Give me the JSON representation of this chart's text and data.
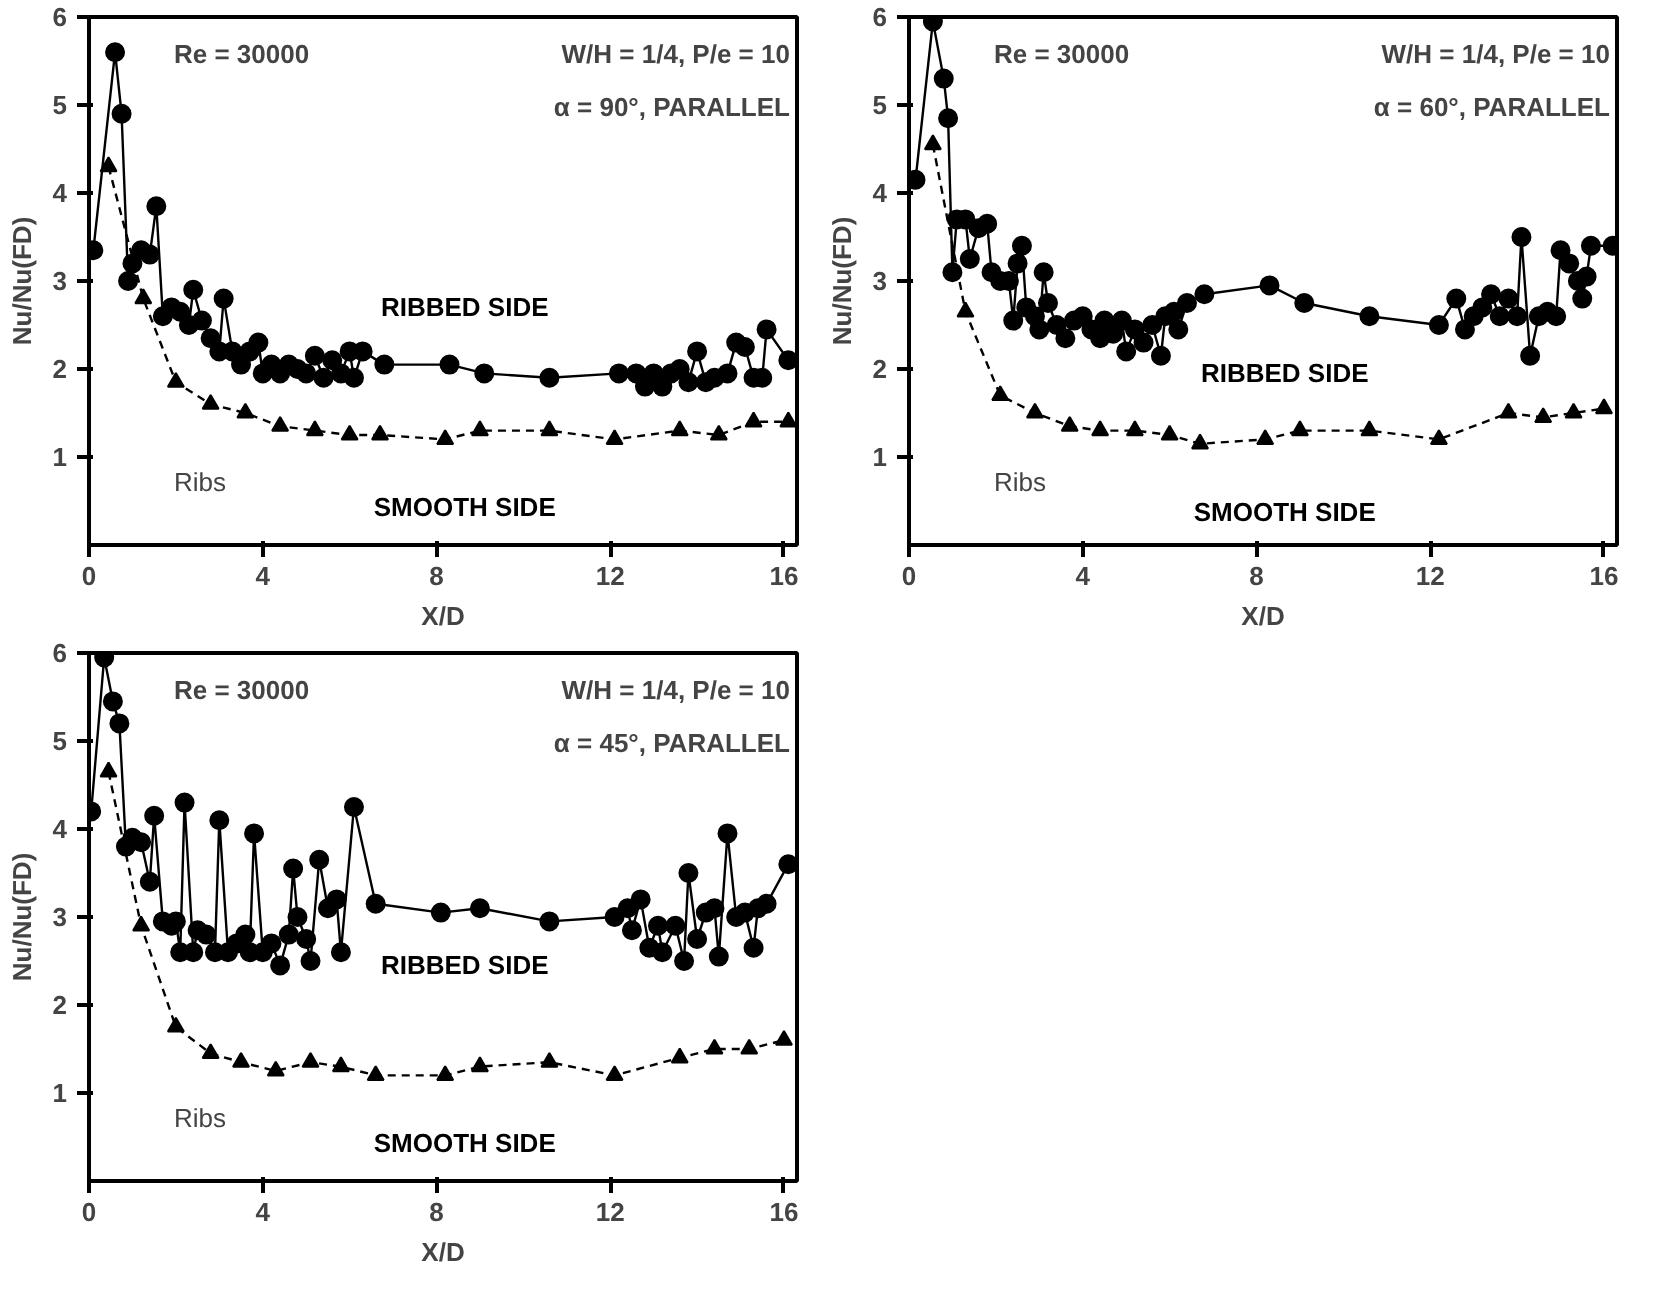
{
  "chart_data": [
    {
      "type": "line",
      "xlabel": "X/D",
      "ylabel": "Nu/Nu(FD)",
      "xlim": [
        0,
        16.3
      ],
      "ylim": [
        0,
        6
      ],
      "xticks": [
        0,
        4,
        8,
        12,
        16
      ],
      "yticks": [
        1,
        2,
        3,
        4,
        5,
        6
      ],
      "grid": false,
      "annotations": [
        "Re = 30000",
        "W/H = 1/4, P/e = 10",
        "α = 90°, PARALLEL",
        "Ribs"
      ],
      "series": [
        {
          "name": "RIBBED SIDE",
          "color": "#000000",
          "marker": "circle",
          "line_style": "solid",
          "x": [
            0.1,
            0.6,
            0.75,
            0.9,
            1.0,
            1.2,
            1.4,
            1.55,
            1.7,
            1.9,
            2.1,
            2.3,
            2.4,
            2.6,
            2.8,
            3.0,
            3.1,
            3.3,
            3.5,
            3.7,
            3.9,
            4.0,
            4.2,
            4.4,
            4.6,
            4.8,
            5.0,
            5.2,
            5.4,
            5.6,
            5.8,
            6.0,
            6.1,
            6.3,
            6.8,
            8.3,
            9.1,
            10.6,
            12.2,
            12.6,
            12.8,
            13.0,
            13.2,
            13.4,
            13.6,
            13.8,
            14.0,
            14.2,
            14.4,
            14.7,
            14.9,
            15.1,
            15.3,
            15.5,
            15.6,
            16.1
          ],
          "values": [
            3.35,
            5.6,
            4.9,
            3.0,
            3.2,
            3.35,
            3.3,
            3.85,
            2.6,
            2.7,
            2.65,
            2.5,
            2.9,
            2.55,
            2.35,
            2.2,
            2.8,
            2.2,
            2.05,
            2.2,
            2.3,
            1.95,
            2.05,
            1.95,
            2.05,
            2.0,
            1.95,
            2.15,
            1.9,
            2.1,
            1.95,
            2.2,
            1.9,
            2.2,
            2.05,
            2.05,
            1.95,
            1.9,
            1.95,
            1.95,
            1.8,
            1.95,
            1.8,
            1.95,
            2.0,
            1.85,
            2.2,
            1.85,
            1.9,
            1.95,
            2.3,
            2.25,
            1.9,
            1.9,
            2.45,
            2.1
          ]
        },
        {
          "name": "SMOOTH SIDE",
          "color": "#000000",
          "marker": "triangle",
          "line_style": "dashed",
          "x": [
            0.45,
            1.25,
            2.0,
            2.8,
            3.6,
            4.4,
            5.2,
            6.0,
            6.7,
            8.2,
            9.0,
            10.6,
            12.1,
            13.6,
            14.5,
            15.3,
            16.1
          ],
          "values": [
            4.3,
            2.8,
            1.85,
            1.6,
            1.5,
            1.35,
            1.3,
            1.25,
            1.25,
            1.2,
            1.3,
            1.3,
            1.2,
            1.3,
            1.25,
            1.4,
            1.4
          ]
        }
      ]
    },
    {
      "type": "line",
      "xlabel": "X/D",
      "ylabel": "Nu/Nu(FD)",
      "xlim": [
        0,
        16.3
      ],
      "ylim": [
        0,
        6
      ],
      "xticks": [
        0,
        4,
        8,
        12,
        16
      ],
      "yticks": [
        1,
        2,
        3,
        4,
        5,
        6
      ],
      "grid": false,
      "annotations": [
        "Re = 30000",
        "W/H = 1/4, P/e = 10",
        "α = 60°, PARALLEL",
        "Ribs"
      ],
      "series": [
        {
          "name": "RIBBED SIDE",
          "color": "#000000",
          "marker": "circle",
          "line_style": "solid",
          "x": [
            0.15,
            0.55,
            0.8,
            0.9,
            1.0,
            1.1,
            1.3,
            1.4,
            1.6,
            1.8,
            1.9,
            2.1,
            2.3,
            2.4,
            2.5,
            2.6,
            2.7,
            2.9,
            3.0,
            3.1,
            3.2,
            3.4,
            3.6,
            3.8,
            4.0,
            4.2,
            4.4,
            4.5,
            4.7,
            4.9,
            5.0,
            5.2,
            5.4,
            5.6,
            5.8,
            5.9,
            6.1,
            6.2,
            6.4,
            6.8,
            8.3,
            9.1,
            10.6,
            12.2,
            12.6,
            12.8,
            13.0,
            13.2,
            13.4,
            13.6,
            13.8,
            14.0,
            14.1,
            14.3,
            14.5,
            14.7,
            14.9,
            15.0,
            15.2,
            15.4,
            15.5,
            15.6,
            15.7,
            16.2
          ],
          "values": [
            4.15,
            5.95,
            5.3,
            4.85,
            3.1,
            3.7,
            3.7,
            3.25,
            3.6,
            3.65,
            3.1,
            3.0,
            3.0,
            2.55,
            3.2,
            3.4,
            2.7,
            2.6,
            2.45,
            3.1,
            2.75,
            2.5,
            2.35,
            2.55,
            2.6,
            2.45,
            2.35,
            2.55,
            2.4,
            2.55,
            2.2,
            2.45,
            2.3,
            2.5,
            2.15,
            2.6,
            2.65,
            2.45,
            2.75,
            2.85,
            2.95,
            2.75,
            2.6,
            2.5,
            2.8,
            2.45,
            2.6,
            2.7,
            2.85,
            2.6,
            2.8,
            2.6,
            3.5,
            2.15,
            2.6,
            2.65,
            2.6,
            3.35,
            3.2,
            3.0,
            2.8,
            3.05,
            3.4,
            3.4
          ]
        },
        {
          "name": "SMOOTH SIDE",
          "color": "#000000",
          "marker": "triangle",
          "line_style": "dashed",
          "x": [
            0.55,
            1.3,
            2.1,
            2.9,
            3.7,
            4.4,
            5.2,
            6.0,
            6.7,
            8.2,
            9.0,
            10.6,
            12.2,
            13.8,
            14.6,
            15.3,
            16.0
          ],
          "values": [
            4.55,
            2.65,
            1.7,
            1.5,
            1.35,
            1.3,
            1.3,
            1.25,
            1.15,
            1.2,
            1.3,
            1.3,
            1.2,
            1.5,
            1.45,
            1.5,
            1.55
          ]
        }
      ]
    },
    {
      "type": "line",
      "xlabel": "X/D",
      "ylabel": "Nu/Nu(FD)",
      "xlim": [
        0,
        16.3
      ],
      "ylim": [
        0,
        6
      ],
      "xticks": [
        0,
        4,
        8,
        12,
        16
      ],
      "yticks": [
        1,
        2,
        3,
        4,
        5,
        6
      ],
      "grid": false,
      "annotations": [
        "Re = 30000",
        "W/H = 1/4, P/e = 10",
        "α = 45°, PARALLEL",
        "Ribs"
      ],
      "series": [
        {
          "name": "RIBBED SIDE",
          "color": "#000000",
          "marker": "circle",
          "line_style": "solid",
          "x": [
            0.05,
            0.35,
            0.55,
            0.7,
            0.85,
            1.0,
            1.2,
            1.4,
            1.5,
            1.7,
            1.9,
            2.0,
            2.1,
            2.2,
            2.4,
            2.5,
            2.7,
            2.9,
            3.0,
            3.2,
            3.4,
            3.6,
            3.7,
            3.8,
            4.0,
            4.2,
            4.4,
            4.6,
            4.7,
            4.8,
            5.0,
            5.1,
            5.3,
            5.5,
            5.7,
            5.8,
            6.1,
            6.6,
            8.1,
            9.0,
            10.6,
            12.1,
            12.4,
            12.5,
            12.7,
            12.9,
            13.1,
            13.2,
            13.5,
            13.7,
            13.8,
            14.0,
            14.2,
            14.4,
            14.5,
            14.7,
            14.9,
            15.1,
            15.3,
            15.4,
            15.6,
            16.1
          ],
          "values": [
            4.2,
            5.95,
            5.45,
            5.2,
            3.8,
            3.9,
            3.85,
            3.4,
            4.15,
            2.95,
            2.9,
            2.95,
            2.6,
            4.3,
            2.6,
            2.85,
            2.8,
            2.6,
            4.1,
            2.6,
            2.7,
            2.8,
            2.6,
            3.95,
            2.6,
            2.7,
            2.45,
            2.8,
            3.55,
            3.0,
            2.75,
            2.5,
            3.65,
            3.1,
            3.2,
            2.6,
            4.25,
            3.15,
            3.05,
            3.1,
            2.95,
            3.0,
            3.1,
            2.85,
            3.2,
            2.65,
            2.9,
            2.6,
            2.9,
            2.5,
            3.5,
            2.75,
            3.05,
            3.1,
            2.55,
            3.95,
            3.0,
            3.05,
            2.65,
            3.1,
            3.15,
            3.6
          ]
        },
        {
          "name": "SMOOTH SIDE",
          "color": "#000000",
          "marker": "triangle",
          "line_style": "dashed",
          "x": [
            0.45,
            1.2,
            2.0,
            2.8,
            3.5,
            4.3,
            5.1,
            5.8,
            6.6,
            8.2,
            9.0,
            10.6,
            12.1,
            13.6,
            14.4,
            15.2,
            16.0
          ],
          "values": [
            4.65,
            2.9,
            1.75,
            1.45,
            1.35,
            1.25,
            1.35,
            1.3,
            1.2,
            1.2,
            1.3,
            1.35,
            1.2,
            1.4,
            1.5,
            1.5,
            1.6
          ]
        }
      ]
    }
  ]
}
